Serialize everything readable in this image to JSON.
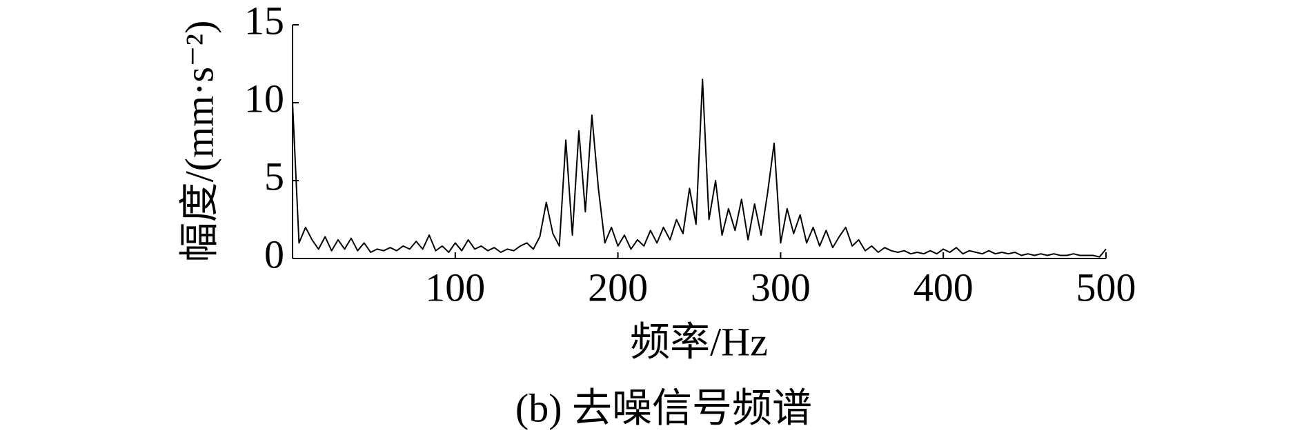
{
  "chart_data": {
    "type": "line",
    "y_label": "幅度/(mm·s⁻²)",
    "x_label": "频率/Hz",
    "caption": "(b) 去噪信号频谱",
    "xlim": [
      0,
      500
    ],
    "xticks": [
      100,
      200,
      300,
      400,
      500
    ],
    "ylim": [
      0,
      15
    ],
    "yticks": [
      0,
      5,
      10,
      15
    ],
    "color": "#000000",
    "x": [
      0,
      4,
      8,
      12,
      16,
      20,
      24,
      28,
      32,
      36,
      40,
      44,
      48,
      52,
      56,
      60,
      64,
      68,
      72,
      76,
      80,
      84,
      88,
      92,
      96,
      100,
      104,
      108,
      112,
      116,
      120,
      124,
      128,
      132,
      136,
      140,
      144,
      148,
      152,
      156,
      160,
      164,
      168,
      172,
      176,
      180,
      184,
      188,
      192,
      196,
      200,
      204,
      208,
      212,
      216,
      220,
      224,
      228,
      232,
      236,
      240,
      244,
      248,
      252,
      256,
      260,
      264,
      268,
      272,
      276,
      280,
      284,
      288,
      292,
      296,
      300,
      304,
      308,
      312,
      316,
      320,
      324,
      328,
      332,
      336,
      340,
      344,
      348,
      352,
      356,
      360,
      364,
      368,
      372,
      376,
      380,
      384,
      388,
      392,
      396,
      400,
      404,
      408,
      412,
      416,
      420,
      424,
      428,
      432,
      436,
      440,
      444,
      448,
      452,
      456,
      460,
      464,
      468,
      472,
      476,
      480,
      484,
      488,
      492,
      496,
      500
    ],
    "values": [
      10,
      1.0,
      2.0,
      1.2,
      0.6,
      1.4,
      0.5,
      1.2,
      0.6,
      1.3,
      0.5,
      1.0,
      0.4,
      0.6,
      0.5,
      0.7,
      0.5,
      0.8,
      0.6,
      1.1,
      0.6,
      1.5,
      0.5,
      0.8,
      0.4,
      1.0,
      0.5,
      1.2,
      0.6,
      0.8,
      0.5,
      0.7,
      0.4,
      0.6,
      0.5,
      0.8,
      1.0,
      0.6,
      1.4,
      3.6,
      1.6,
      0.8,
      7.6,
      1.5,
      8.2,
      3.0,
      9.2,
      4.5,
      1.0,
      2.0,
      0.8,
      1.5,
      0.6,
      1.2,
      0.8,
      1.8,
      1.0,
      2.0,
      1.2,
      2.5,
      1.6,
      4.5,
      2.2,
      11.5,
      2.5,
      5.0,
      1.5,
      3.2,
      1.8,
      3.8,
      1.2,
      3.5,
      1.5,
      4.2,
      7.4,
      1.0,
      3.2,
      1.6,
      2.8,
      1.0,
      2.0,
      0.8,
      1.8,
      0.7,
      1.4,
      2.0,
      0.8,
      1.2,
      0.5,
      0.8,
      0.4,
      0.7,
      0.5,
      0.4,
      0.5,
      0.3,
      0.4,
      0.3,
      0.5,
      0.3,
      0.6,
      0.4,
      0.7,
      0.3,
      0.5,
      0.4,
      0.3,
      0.5,
      0.3,
      0.4,
      0.3,
      0.4,
      0.2,
      0.3,
      0.2,
      0.3,
      0.2,
      0.3,
      0.2,
      0.2,
      0.3,
      0.2,
      0.2,
      0.2,
      0.1,
      0.6
    ]
  }
}
